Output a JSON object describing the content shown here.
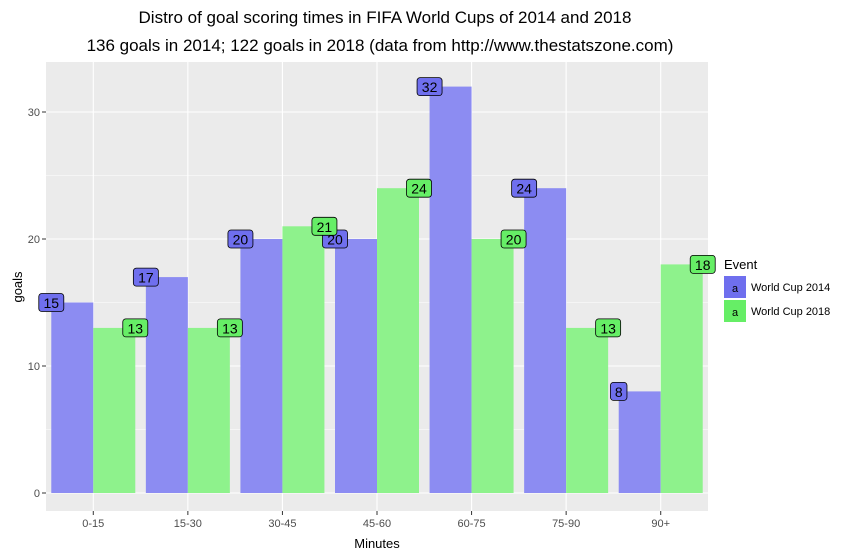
{
  "chart_data": {
    "type": "bar",
    "title": "Distro of goal scoring times in FIFA World Cups of 2014 and 2018",
    "subtitle": "136 goals in 2014; 122 goals in 2018 (data from http://www.thestatszone.com)",
    "xlabel": "Minutes",
    "ylabel": "goals",
    "categories": [
      "0-15",
      "15-30",
      "30-45",
      "45-60",
      "60-75",
      "75-90",
      "90+"
    ],
    "series": [
      {
        "name": "World Cup 2014",
        "values": [
          15,
          17,
          20,
          20,
          32,
          24,
          8
        ],
        "color": "#8c8cf2"
      },
      {
        "name": "World Cup 2018",
        "values": [
          13,
          13,
          21,
          24,
          20,
          13,
          18
        ],
        "color": "#8ef28c"
      }
    ],
    "label_colors": [
      "#6f6fee",
      "#66ee66"
    ],
    "yticks": [
      0,
      10,
      20,
      30
    ],
    "ylim": [
      -1.6,
      34.1
    ],
    "legend": {
      "title": "Event",
      "key_glyph": "a",
      "position": "right"
    },
    "grid": true,
    "panel_background": "#ebebeb"
  }
}
